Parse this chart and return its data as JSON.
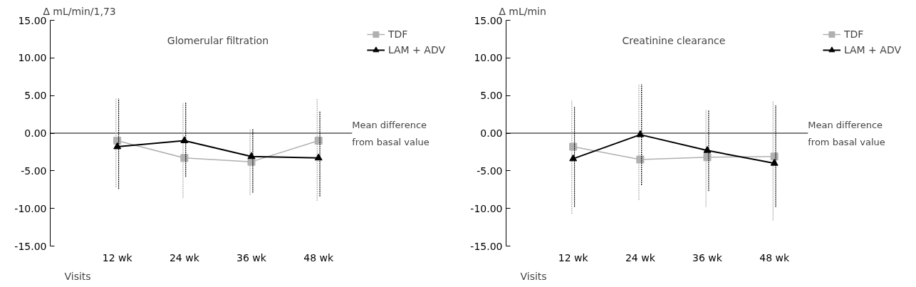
{
  "chart_data": [
    {
      "type": "line",
      "title": "Glomerular filtration",
      "ylabel": "∆ mL/min/1,73",
      "xlabel": "Visits",
      "categories": [
        "12 wk",
        "24 wk",
        "36 wk",
        "48 wk"
      ],
      "ylim": [
        -15,
        15
      ],
      "yticks": [
        {
          "value": -15,
          "label": "-15.00"
        },
        {
          "value": -10,
          "label": "-10.00"
        },
        {
          "value": -5,
          "label": "-5.00"
        },
        {
          "value": 0,
          "label": "0.00"
        },
        {
          "value": 5,
          "label": "5.00"
        },
        {
          "value": 10,
          "label": "10.00"
        },
        {
          "value": 15,
          "label": "15.00"
        }
      ],
      "series": [
        {
          "name": "TDF",
          "color": "#b0b0b0",
          "marker": "square",
          "values": [
            -1.0,
            -3.3,
            -3.8,
            -1.0
          ],
          "errors": [
            [
              -7.2,
              4.6
            ],
            [
              -8.6,
              4.0
            ],
            [
              -8.2,
              0.6
            ],
            [
              -9.0,
              4.6
            ]
          ]
        },
        {
          "name": "LAM + ADV",
          "color": "#000000",
          "marker": "triangle",
          "values": [
            -1.8,
            -1.0,
            -3.1,
            -3.3
          ],
          "errors": [
            [
              -7.4,
              4.6
            ],
            [
              -5.8,
              4.1
            ],
            [
              -7.9,
              0.6
            ],
            [
              -8.4,
              2.9
            ]
          ]
        }
      ],
      "ref_lines": [
        {
          "axis": "y",
          "value": 0,
          "label": "Mean difference\nfrom basal value",
          "color": "#000000"
        }
      ],
      "legend": "top right",
      "grid": false,
      "line_style": "solid"
    },
    {
      "type": "line",
      "title": "Creatinine clearance",
      "ylabel": "∆ mL/min",
      "xlabel": "Visits",
      "categories": [
        "12 wk",
        "24 wk",
        "36 wk",
        "48 wk"
      ],
      "ylim": [
        -15,
        15
      ],
      "yticks": [
        {
          "value": -15,
          "label": "-15.00"
        },
        {
          "value": -10,
          "label": "-10.00"
        },
        {
          "value": -5,
          "label": "-5.00"
        },
        {
          "value": 0,
          "label": "0.00"
        },
        {
          "value": 5,
          "label": "5.00"
        },
        {
          "value": 10,
          "label": "10.00"
        },
        {
          "value": 15,
          "label": "15.00"
        }
      ],
      "series": [
        {
          "name": "TDF",
          "color": "#b0b0b0",
          "marker": "square",
          "values": [
            -1.8,
            -3.5,
            -3.2,
            -3.1
          ],
          "errors": [
            [
              -10.7,
              4.4
            ],
            [
              -8.9,
              6.5
            ],
            [
              -9.8,
              3.1
            ],
            [
              -11.6,
              4.3
            ]
          ]
        },
        {
          "name": "LAM + ADV",
          "color": "#000000",
          "marker": "triangle",
          "values": [
            -3.4,
            -0.2,
            -2.3,
            -4.0
          ],
          "errors": [
            [
              -9.8,
              3.5
            ],
            [
              -6.9,
              6.5
            ],
            [
              -7.7,
              3.1
            ],
            [
              -9.8,
              3.7
            ]
          ]
        }
      ],
      "ref_lines": [
        {
          "axis": "y",
          "value": 0,
          "label": "Mean difference\nfrom basal value",
          "color": "#000000"
        }
      ],
      "legend": "top right",
      "grid": false,
      "line_style": "solid"
    }
  ]
}
